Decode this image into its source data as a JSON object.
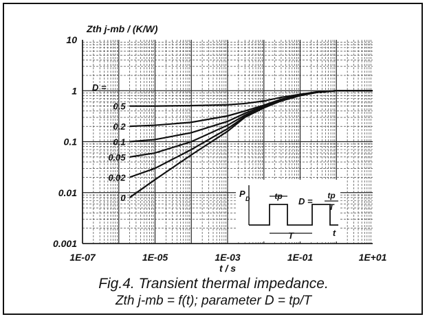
{
  "chart_data": {
    "type": "line",
    "title": "",
    "ylabel": "Zth j-mb / (K/W)",
    "xlabel": "t / s",
    "xscale": "log",
    "yscale": "log",
    "xlim": [
      1e-07,
      10
    ],
    "ylim": [
      0.001,
      10
    ],
    "grid": true,
    "x_tick_labels": [
      "1E-07",
      "1E-05",
      "1E-03",
      "1E-01",
      "1E+01"
    ],
    "y_tick_labels": [
      "10",
      "1",
      "0.1",
      "0.01",
      "0.001"
    ],
    "param_label": "D =",
    "series": [
      {
        "name": "0.5",
        "x": [
          2e-06,
          1e-05,
          0.0001,
          0.001,
          0.003,
          0.01,
          0.03,
          0.1,
          0.3,
          1,
          10
        ],
        "y": [
          0.5,
          0.5,
          0.51,
          0.53,
          0.56,
          0.63,
          0.74,
          0.85,
          0.95,
          1.0,
          1.0
        ]
      },
      {
        "name": "0.2",
        "x": [
          2e-06,
          1e-05,
          0.0001,
          0.001,
          0.003,
          0.01,
          0.03,
          0.1,
          0.3,
          1,
          10
        ],
        "y": [
          0.2,
          0.21,
          0.24,
          0.32,
          0.4,
          0.52,
          0.68,
          0.83,
          0.94,
          1.0,
          1.0
        ]
      },
      {
        "name": "0.1",
        "x": [
          2e-06,
          1e-05,
          0.0001,
          0.001,
          0.003,
          0.01,
          0.03,
          0.1,
          0.3,
          1,
          10
        ],
        "y": [
          0.1,
          0.11,
          0.15,
          0.25,
          0.36,
          0.5,
          0.66,
          0.82,
          0.93,
          1.0,
          1.0
        ]
      },
      {
        "name": "0.05",
        "x": [
          2e-06,
          1e-05,
          0.0001,
          0.001,
          0.003,
          0.01,
          0.03,
          0.1,
          0.3,
          1,
          10
        ],
        "y": [
          0.05,
          0.06,
          0.1,
          0.21,
          0.33,
          0.48,
          0.65,
          0.81,
          0.93,
          1.0,
          1.0
        ]
      },
      {
        "name": "0.02",
        "x": [
          2e-06,
          1e-05,
          0.0001,
          0.001,
          0.003,
          0.01,
          0.03,
          0.1,
          0.3,
          1,
          10
        ],
        "y": [
          0.02,
          0.03,
          0.07,
          0.18,
          0.31,
          0.47,
          0.64,
          0.81,
          0.93,
          1.0,
          1.0
        ]
      },
      {
        "name": "0",
        "x": [
          2e-06,
          1e-05,
          0.0001,
          0.001,
          0.003,
          0.01,
          0.03,
          0.1,
          0.3,
          1,
          10
        ],
        "y": [
          0.008,
          0.018,
          0.055,
          0.16,
          0.3,
          0.46,
          0.63,
          0.8,
          0.93,
          1.0,
          1.0
        ]
      }
    ],
    "inset": {
      "p_label": "P",
      "p_sub": "D",
      "tp_label": "tp",
      "d_label": "D =",
      "frac_num": "tp",
      "frac_den": "T",
      "period_label": "T",
      "time_label": "t"
    }
  },
  "caption": {
    "line1": "Fig.4.  Transient thermal impedance.",
    "line2": "Zth j-mb = f(t); parameter D = tp/T"
  }
}
